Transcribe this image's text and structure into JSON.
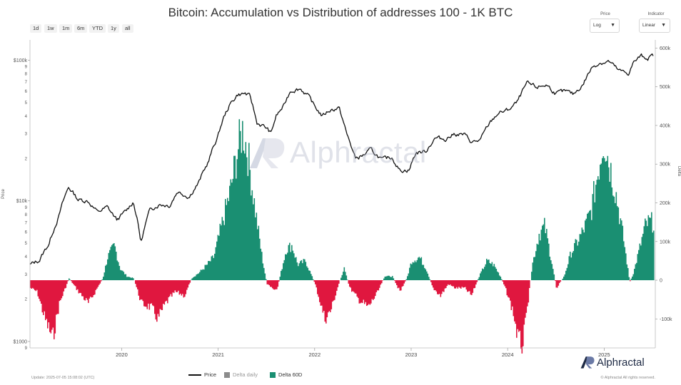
{
  "header": {
    "title": "Bitcoin: Accumulation vs Distribution of addresses 100 - 1K BTC"
  },
  "range_buttons": [
    "1d",
    "1w",
    "1m",
    "6m",
    "YTD",
    "1y",
    "all"
  ],
  "controls": {
    "price": {
      "label": "Price",
      "value": "Log"
    },
    "indicator": {
      "label": "Indicator",
      "value": "Linear"
    }
  },
  "legend": {
    "price": "Price",
    "delta_daily": "Delta daily",
    "delta_60d": "Delta 60D"
  },
  "footer": {
    "update": "Update: 2025-07-05 15:08:02 (UTC)",
    "rights": "© Alphractal All rights reserved.",
    "brand": "Alphractal"
  },
  "watermark": "Alphractal",
  "colors": {
    "price": "#111111",
    "delta_positive": "#1a8f72",
    "delta_negative": "#e0173f",
    "delta_daily": "#8c8c8c",
    "brand": "#1e2a44",
    "watermark": "#a8aec3"
  },
  "chart_data": {
    "type": "line",
    "title": "Bitcoin: Accumulation vs Distribution of addresses 100 - 1K BTC",
    "x_range": [
      2019.05,
      2025.53
    ],
    "x_ticks": [
      "2020",
      "2021",
      "2022",
      "2023",
      "2024",
      "2025"
    ],
    "left_axis": {
      "label": "Price",
      "scale": "log",
      "range": [
        900,
        130000
      ],
      "major_ticks": [
        "$1000",
        "$10k",
        "$100k"
      ],
      "minor_ticks": [
        "2",
        "3",
        "4",
        "5",
        "6",
        "7",
        "8",
        "9",
        "2",
        "3",
        "4",
        "5",
        "6",
        "7",
        "8",
        "9",
        "9"
      ]
    },
    "right_axis": {
      "label": "Delta",
      "scale": "linear",
      "range": [
        -175000,
        610000
      ],
      "ticks": [
        "-100k",
        "0",
        "100k",
        "200k",
        "300k",
        "400k",
        "500k",
        "600k"
      ]
    },
    "series": [
      {
        "name": "Price",
        "axis": "left",
        "type": "line",
        "points": [
          [
            2019.05,
            3500
          ],
          [
            2019.15,
            3800
          ],
          [
            2019.25,
            5000
          ],
          [
            2019.35,
            7800
          ],
          [
            2019.45,
            12500
          ],
          [
            2019.55,
            10200
          ],
          [
            2019.65,
            10000
          ],
          [
            2019.75,
            8300
          ],
          [
            2019.85,
            9000
          ],
          [
            2019.95,
            7300
          ],
          [
            2020.05,
            8500
          ],
          [
            2020.12,
            9900
          ],
          [
            2020.2,
            5000
          ],
          [
            2020.3,
            8800
          ],
          [
            2020.4,
            9500
          ],
          [
            2020.5,
            9300
          ],
          [
            2020.58,
            11700
          ],
          [
            2020.7,
            10700
          ],
          [
            2020.8,
            13500
          ],
          [
            2020.9,
            19000
          ],
          [
            2021.0,
            29000
          ],
          [
            2021.05,
            38000
          ],
          [
            2021.12,
            48000
          ],
          [
            2021.2,
            57000
          ],
          [
            2021.28,
            58000
          ],
          [
            2021.33,
            55000
          ],
          [
            2021.4,
            36000
          ],
          [
            2021.5,
            33000
          ],
          [
            2021.55,
            30000
          ],
          [
            2021.6,
            40000
          ],
          [
            2021.68,
            47000
          ],
          [
            2021.75,
            61000
          ],
          [
            2021.85,
            63000
          ],
          [
            2021.92,
            57000
          ],
          [
            2022.0,
            47000
          ],
          [
            2022.08,
            40000
          ],
          [
            2022.15,
            44000
          ],
          [
            2022.25,
            46000
          ],
          [
            2022.33,
            30000
          ],
          [
            2022.42,
            20000
          ],
          [
            2022.5,
            21000
          ],
          [
            2022.58,
            23000
          ],
          [
            2022.7,
            19500
          ],
          [
            2022.8,
            20500
          ],
          [
            2022.88,
            16500
          ],
          [
            2022.98,
            16600
          ],
          [
            2023.05,
            22000
          ],
          [
            2023.15,
            22500
          ],
          [
            2023.25,
            28000
          ],
          [
            2023.35,
            27500
          ],
          [
            2023.45,
            30000
          ],
          [
            2023.55,
            29500
          ],
          [
            2023.63,
            26000
          ],
          [
            2023.72,
            27000
          ],
          [
            2023.8,
            34500
          ],
          [
            2023.9,
            42000
          ],
          [
            2024.0,
            44000
          ],
          [
            2024.1,
            50000
          ],
          [
            2024.2,
            68000
          ],
          [
            2024.3,
            64000
          ],
          [
            2024.4,
            67000
          ],
          [
            2024.5,
            58000
          ],
          [
            2024.6,
            60000
          ],
          [
            2024.68,
            57000
          ],
          [
            2024.78,
            67000
          ],
          [
            2024.88,
            90000
          ],
          [
            2024.95,
            96000
          ],
          [
            2025.05,
            98000
          ],
          [
            2025.15,
            84000
          ],
          [
            2025.25,
            80000
          ],
          [
            2025.3,
            95000
          ],
          [
            2025.38,
            107000
          ],
          [
            2025.45,
            104000
          ],
          [
            2025.51,
            108000
          ]
        ]
      },
      {
        "name": "Delta 60D",
        "axis": "right",
        "type": "area",
        "points": [
          [
            2019.05,
            -20000
          ],
          [
            2019.12,
            -30000
          ],
          [
            2019.2,
            -100000
          ],
          [
            2019.28,
            -150000
          ],
          [
            2019.35,
            -60000
          ],
          [
            2019.45,
            5000
          ],
          [
            2019.55,
            -30000
          ],
          [
            2019.65,
            -60000
          ],
          [
            2019.72,
            -30000
          ],
          [
            2019.8,
            5000
          ],
          [
            2019.85,
            60000
          ],
          [
            2019.92,
            90000
          ],
          [
            2019.98,
            30000
          ],
          [
            2020.05,
            10000
          ],
          [
            2020.12,
            5000
          ],
          [
            2020.2,
            -60000
          ],
          [
            2020.3,
            -70000
          ],
          [
            2020.37,
            -100000
          ],
          [
            2020.45,
            -60000
          ],
          [
            2020.55,
            -30000
          ],
          [
            2020.65,
            -40000
          ],
          [
            2020.72,
            5000
          ],
          [
            2020.8,
            20000
          ],
          [
            2020.88,
            40000
          ],
          [
            2020.95,
            60000
          ],
          [
            2021.02,
            130000
          ],
          [
            2021.12,
            230000
          ],
          [
            2021.2,
            340000
          ],
          [
            2021.25,
            390000
          ],
          [
            2021.3,
            330000
          ],
          [
            2021.38,
            180000
          ],
          [
            2021.45,
            60000
          ],
          [
            2021.5,
            -10000
          ],
          [
            2021.6,
            -30000
          ],
          [
            2021.7,
            80000
          ],
          [
            2021.76,
            90000
          ],
          [
            2021.82,
            40000
          ],
          [
            2021.9,
            50000
          ],
          [
            2021.95,
            20000
          ],
          [
            2022.0,
            -10000
          ],
          [
            2022.1,
            -100000
          ],
          [
            2022.16,
            -80000
          ],
          [
            2022.25,
            -5000
          ],
          [
            2022.3,
            30000
          ],
          [
            2022.36,
            -20000
          ],
          [
            2022.45,
            -50000
          ],
          [
            2022.55,
            -70000
          ],
          [
            2022.65,
            -30000
          ],
          [
            2022.72,
            10000
          ],
          [
            2022.8,
            10000
          ],
          [
            2022.88,
            -30000
          ],
          [
            2022.95,
            5000
          ],
          [
            2023.0,
            50000
          ],
          [
            2023.08,
            60000
          ],
          [
            2023.15,
            30000
          ],
          [
            2023.22,
            -20000
          ],
          [
            2023.3,
            -40000
          ],
          [
            2023.38,
            -10000
          ],
          [
            2023.45,
            -20000
          ],
          [
            2023.55,
            -20000
          ],
          [
            2023.62,
            -40000
          ],
          [
            2023.7,
            10000
          ],
          [
            2023.78,
            50000
          ],
          [
            2023.85,
            40000
          ],
          [
            2023.92,
            10000
          ],
          [
            2023.97,
            -20000
          ],
          [
            2024.05,
            -80000
          ],
          [
            2024.1,
            -150000
          ],
          [
            2024.15,
            -170000
          ],
          [
            2024.2,
            -70000
          ],
          [
            2024.25,
            40000
          ],
          [
            2024.32,
            120000
          ],
          [
            2024.38,
            140000
          ],
          [
            2024.45,
            50000
          ],
          [
            2024.5,
            -20000
          ],
          [
            2024.58,
            10000
          ],
          [
            2024.65,
            70000
          ],
          [
            2024.72,
            100000
          ],
          [
            2024.8,
            140000
          ],
          [
            2024.86,
            180000
          ],
          [
            2024.93,
            280000
          ],
          [
            2024.99,
            370000
          ],
          [
            2025.05,
            300000
          ],
          [
            2025.12,
            220000
          ],
          [
            2025.2,
            100000
          ],
          [
            2025.26,
            -5000
          ],
          [
            2025.3,
            20000
          ],
          [
            2025.36,
            80000
          ],
          [
            2025.42,
            140000
          ],
          [
            2025.46,
            150000
          ],
          [
            2025.51,
            150000
          ]
        ]
      }
    ],
    "grid": false,
    "legend_position": "bottom"
  }
}
